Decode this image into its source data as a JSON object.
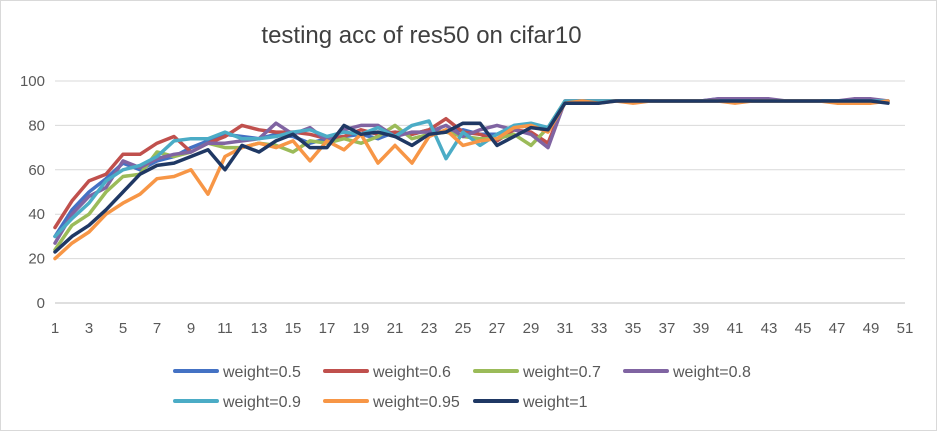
{
  "chart_data": {
    "type": "line",
    "title": "testing acc of res50 on cifar10",
    "xlabel": "",
    "ylabel": "",
    "ylim": [
      0,
      100
    ],
    "yticks": [
      0,
      20,
      40,
      60,
      80,
      100
    ],
    "xlim": [
      1,
      51
    ],
    "xticks": [
      1,
      3,
      5,
      7,
      9,
      11,
      13,
      15,
      17,
      19,
      21,
      23,
      25,
      27,
      29,
      31,
      33,
      35,
      37,
      39,
      41,
      43,
      45,
      47,
      49,
      51
    ],
    "grid": true,
    "legend_position": "bottom",
    "x": [
      1,
      2,
      3,
      4,
      5,
      6,
      7,
      8,
      9,
      10,
      11,
      12,
      13,
      14,
      15,
      16,
      17,
      18,
      19,
      20,
      21,
      22,
      23,
      24,
      25,
      26,
      27,
      28,
      29,
      30,
      31,
      32,
      33,
      34,
      35,
      36,
      37,
      38,
      39,
      40,
      41,
      42,
      43,
      44,
      45,
      46,
      47,
      48,
      49,
      50
    ],
    "series": [
      {
        "name": "weight=0.5",
        "color": "#4472c4",
        "values": [
          30,
          42,
          50,
          56,
          63,
          60,
          64,
          66,
          70,
          73,
          76,
          75,
          74,
          76,
          75,
          72,
          74,
          75,
          76,
          74,
          77,
          76,
          78,
          77,
          78,
          76,
          76,
          79,
          80,
          78,
          91,
          91,
          91,
          91,
          91,
          91,
          91,
          91,
          91,
          92,
          92,
          91,
          91,
          91,
          91,
          91,
          91,
          91,
          91,
          91
        ]
      },
      {
        "name": "weight=0.6",
        "color": "#c0504d",
        "values": [
          34,
          46,
          55,
          58,
          67,
          67,
          72,
          75,
          68,
          72,
          75,
          80,
          78,
          77,
          77,
          76,
          74,
          75,
          78,
          76,
          77,
          76,
          78,
          83,
          77,
          76,
          73,
          78,
          77,
          72,
          91,
          91,
          91,
          91,
          91,
          91,
          91,
          91,
          91,
          91,
          91,
          91,
          91,
          91,
          91,
          91,
          91,
          91,
          91,
          91
        ]
      },
      {
        "name": "weight=0.7",
        "color": "#9bbb59",
        "values": [
          24,
          35,
          40,
          50,
          57,
          58,
          68,
          66,
          68,
          72,
          70,
          70,
          72,
          71,
          68,
          73,
          72,
          74,
          72,
          75,
          80,
          74,
          76,
          77,
          75,
          74,
          74,
          76,
          71,
          79,
          91,
          91,
          91,
          91,
          91,
          91,
          91,
          91,
          91,
          91,
          91,
          91,
          91,
          91,
          91,
          91,
          91,
          91,
          91,
          91
        ]
      },
      {
        "name": "weight=0.8",
        "color": "#8064a2",
        "values": [
          27,
          40,
          48,
          52,
          64,
          61,
          65,
          67,
          68,
          72,
          72,
          73,
          74,
          81,
          76,
          79,
          73,
          78,
          80,
          80,
          75,
          77,
          77,
          80,
          75,
          78,
          80,
          78,
          76,
          70,
          91,
          91,
          91,
          91,
          91,
          91,
          91,
          91,
          91,
          92,
          92,
          92,
          92,
          91,
          91,
          91,
          91,
          92,
          92,
          91
        ]
      },
      {
        "name": "weight=0.9",
        "color": "#4bacc6",
        "values": [
          30,
          38,
          45,
          55,
          60,
          62,
          66,
          73,
          74,
          74,
          77,
          74,
          74,
          75,
          77,
          78,
          75,
          77,
          76,
          79,
          75,
          80,
          82,
          65,
          77,
          71,
          76,
          80,
          81,
          79,
          91,
          91,
          91,
          91,
          91,
          91,
          91,
          91,
          91,
          91,
          91,
          91,
          91,
          91,
          91,
          91,
          91,
          91,
          91,
          91
        ]
      },
      {
        "name": "weight=0.95",
        "color": "#f79646",
        "values": [
          20,
          27,
          32,
          40,
          45,
          49,
          56,
          57,
          60,
          49,
          66,
          70,
          72,
          70,
          73,
          64,
          73,
          69,
          76,
          63,
          71,
          63,
          75,
          78,
          71,
          73,
          74,
          79,
          80,
          77,
          90,
          91,
          90,
          91,
          90,
          91,
          91,
          91,
          91,
          91,
          90,
          91,
          91,
          91,
          91,
          91,
          90,
          90,
          90,
          91
        ]
      },
      {
        "name": "weight=1",
        "color": "#1f3864",
        "values": [
          23,
          30,
          35,
          42,
          50,
          58,
          62,
          63,
          66,
          69,
          60,
          71,
          68,
          73,
          76,
          70,
          70,
          80,
          76,
          77,
          75,
          71,
          76,
          77,
          81,
          81,
          71,
          75,
          79,
          78,
          90,
          90,
          90,
          91,
          91,
          91,
          91,
          91,
          91,
          91,
          91,
          91,
          91,
          91,
          91,
          91,
          91,
          91,
          91,
          90
        ]
      }
    ]
  }
}
